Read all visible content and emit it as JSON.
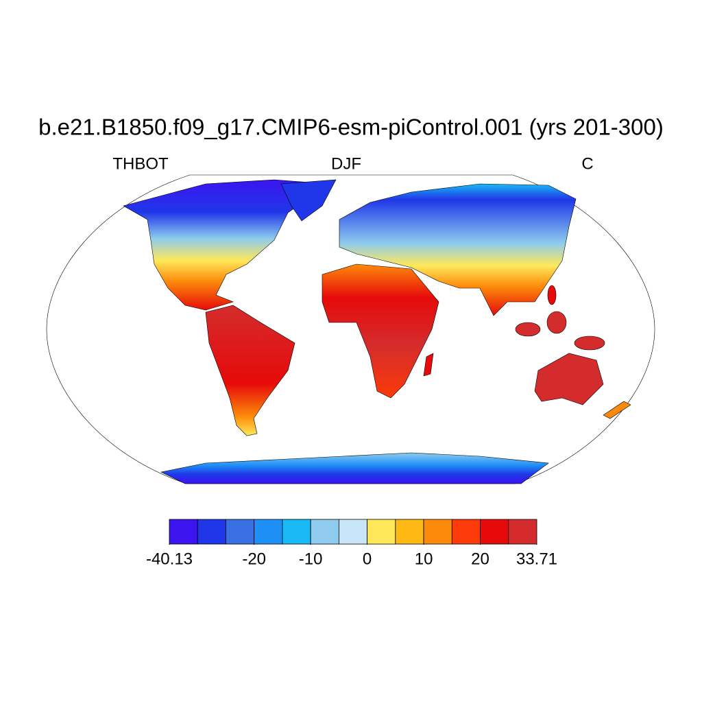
{
  "chart_data": {
    "type": "map",
    "title": "b.e21.B1850.f09_g17.CMIP6-esm-piControl.001 (yrs 201-300)",
    "left_label": "THBOT",
    "center_label": "DJF",
    "right_label": "C",
    "colorbar": {
      "levels": [
        -40.13,
        -33.4,
        -26.7,
        -20,
        -15,
        -10,
        -5,
        0,
        5,
        10,
        15,
        20,
        26.9,
        33.71
      ],
      "colors": [
        "#3c14f0",
        "#1f37e8",
        "#3a6fe3",
        "#1e90f5",
        "#19b9f5",
        "#8ecbef",
        "#c8e6f7",
        "#fee85a",
        "#fdb813",
        "#fd8a0a",
        "#fc3a0a",
        "#e60a0a",
        "#d42c2c"
      ],
      "ticks": [
        -40.13,
        -20,
        -10,
        0,
        10,
        20,
        33.71
      ]
    }
  }
}
